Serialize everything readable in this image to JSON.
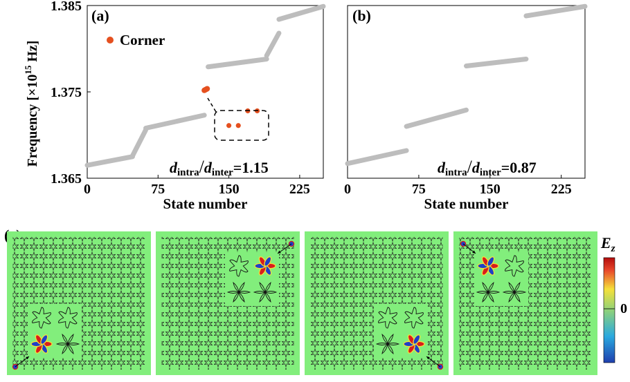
{
  "panels": {
    "a_label": "(a)",
    "b_label": "(b)",
    "c_label": "(c)"
  },
  "legend": {
    "corner": "Corner"
  },
  "ratio_a": {
    "num": "d",
    "num_sub": "intra",
    "slash": "/",
    "den": "d",
    "den_sub": "inter",
    "value": "=1.15"
  },
  "ratio_b": {
    "num": "d",
    "num_sub": "intra",
    "slash": "/",
    "den": "d",
    "den_sub": "inter",
    "value": "=0.87"
  },
  "colorbar": {
    "title": "E",
    "title_sub": "z",
    "mid_label": "0",
    "colors": [
      "#1f3fae",
      "#2aa9df",
      "#8fd27a",
      "#f5e03a",
      "#e8472b",
      "#b30d0d"
    ]
  },
  "colors": {
    "bulk": "#bdbdbd",
    "corner": "#e5501f",
    "field_bg": "#82ee7c"
  },
  "chart_data": [
    {
      "type": "scatter",
      "panel": "(a)",
      "xlabel": "State number",
      "ylabel": "Frequency [×10¹⁵ Hz]",
      "ylabel_parts": {
        "prefix": "Frequency [×10",
        "sup": "15",
        "suffix": " Hz]"
      },
      "xlim": [
        0,
        250
      ],
      "ylim": [
        1.365,
        1.385
      ],
      "xticks": [
        "0",
        "75",
        "150",
        "225"
      ],
      "xtick_values": [
        0,
        75,
        150,
        225
      ],
      "yticks": [
        "1.365",
        "1.375",
        "1.385"
      ],
      "ytick_values": [
        1.365,
        1.375,
        1.385
      ],
      "series": [
        {
          "role": "bulk",
          "segments": [
            {
              "x": [
                0,
                48
              ],
              "y": [
                1.3665,
                1.3675
              ]
            },
            {
              "x": [
                48,
                62
              ],
              "y": [
                1.3676,
                1.3706
              ]
            },
            {
              "x": [
                62,
                124
              ],
              "y": [
                1.3708,
                1.3723
              ]
            },
            {
              "x": [
                128,
                190
              ],
              "y": [
                1.3779,
                1.3788
              ]
            },
            {
              "x": [
                190,
                203
              ],
              "y": [
                1.3792,
                1.3818
              ]
            },
            {
              "x": [
                203,
                250
              ],
              "y": [
                1.3834,
                1.3849
              ]
            }
          ]
        },
        {
          "name": "Corner",
          "role": "corner",
          "x": [
            124,
            125,
            126,
            127
          ],
          "y": [
            1.37518,
            1.37524,
            1.3753,
            1.37536
          ],
          "inset_x": [
            150,
            160,
            170,
            180
          ],
          "inset_y": [
            1.3711,
            1.3711,
            1.3728,
            1.3728
          ]
        }
      ]
    },
    {
      "type": "scatter",
      "panel": "(b)",
      "xlabel": "State number",
      "xlim": [
        0,
        250
      ],
      "ylim": [
        1.365,
        1.385
      ],
      "xticks": [
        "0",
        "75",
        "150",
        "225"
      ],
      "xtick_values": [
        0,
        75,
        150,
        225
      ],
      "series": [
        {
          "role": "bulk",
          "segments": [
            {
              "x": [
                0,
                62
              ],
              "y": [
                1.3667,
                1.3682
              ]
            },
            {
              "x": [
                62,
                125
              ],
              "y": [
                1.371,
                1.3729
              ]
            },
            {
              "x": [
                125,
                188
              ],
              "y": [
                1.378,
                1.3788
              ]
            },
            {
              "x": [
                188,
                250
              ],
              "y": [
                1.3838,
                1.3849
              ]
            }
          ]
        }
      ]
    }
  ]
}
